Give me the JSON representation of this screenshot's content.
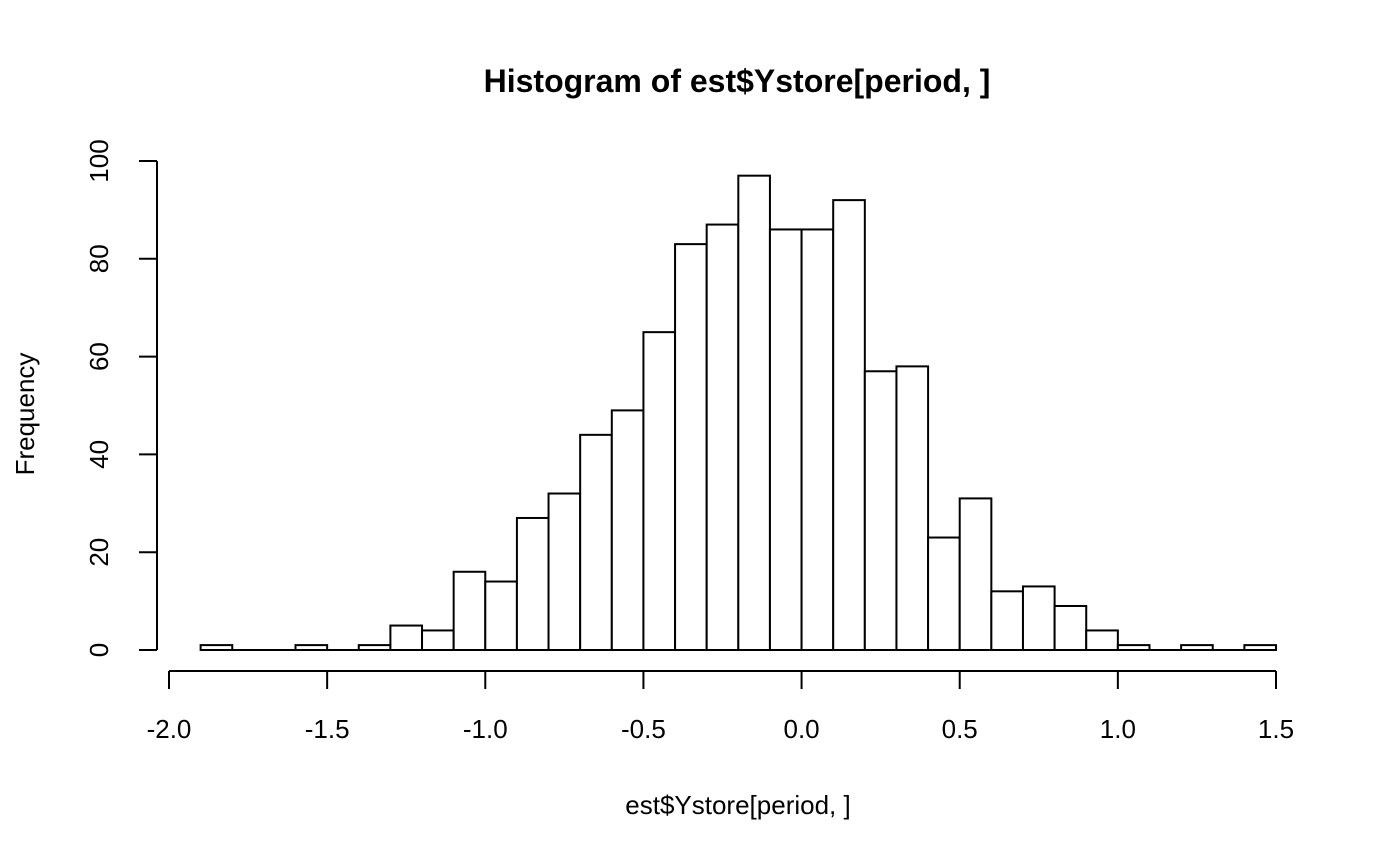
{
  "chart_data": {
    "type": "bar",
    "title": "Histogram of est$Ystore[period, ]",
    "xlabel": "est$Ystore[period, ]",
    "ylabel": "Frequency",
    "bin_width": 0.1,
    "bins": [
      {
        "x0": -1.9,
        "x1": -1.8,
        "count": 1
      },
      {
        "x0": -1.8,
        "x1": -1.7,
        "count": 0
      },
      {
        "x0": -1.7,
        "x1": -1.6,
        "count": 0
      },
      {
        "x0": -1.6,
        "x1": -1.5,
        "count": 1
      },
      {
        "x0": -1.5,
        "x1": -1.4,
        "count": 0
      },
      {
        "x0": -1.4,
        "x1": -1.3,
        "count": 1
      },
      {
        "x0": -1.3,
        "x1": -1.2,
        "count": 5
      },
      {
        "x0": -1.2,
        "x1": -1.1,
        "count": 4
      },
      {
        "x0": -1.1,
        "x1": -1.0,
        "count": 16
      },
      {
        "x0": -1.0,
        "x1": -0.9,
        "count": 14
      },
      {
        "x0": -0.9,
        "x1": -0.8,
        "count": 27
      },
      {
        "x0": -0.8,
        "x1": -0.7,
        "count": 32
      },
      {
        "x0": -0.7,
        "x1": -0.6,
        "count": 44
      },
      {
        "x0": -0.6,
        "x1": -0.5,
        "count": 49
      },
      {
        "x0": -0.5,
        "x1": -0.4,
        "count": 65
      },
      {
        "x0": -0.4,
        "x1": -0.3,
        "count": 83
      },
      {
        "x0": -0.3,
        "x1": -0.2,
        "count": 87
      },
      {
        "x0": -0.2,
        "x1": -0.1,
        "count": 97
      },
      {
        "x0": -0.1,
        "x1": 0.0,
        "count": 86
      },
      {
        "x0": 0.0,
        "x1": 0.1,
        "count": 86
      },
      {
        "x0": 0.1,
        "x1": 0.2,
        "count": 92
      },
      {
        "x0": 0.2,
        "x1": 0.3,
        "count": 57
      },
      {
        "x0": 0.3,
        "x1": 0.4,
        "count": 58
      },
      {
        "x0": 0.4,
        "x1": 0.5,
        "count": 23
      },
      {
        "x0": 0.5,
        "x1": 0.6,
        "count": 31
      },
      {
        "x0": 0.6,
        "x1": 0.7,
        "count": 12
      },
      {
        "x0": 0.7,
        "x1": 0.8,
        "count": 13
      },
      {
        "x0": 0.8,
        "x1": 0.9,
        "count": 9
      },
      {
        "x0": 0.9,
        "x1": 1.0,
        "count": 4
      },
      {
        "x0": 1.0,
        "x1": 1.1,
        "count": 1
      },
      {
        "x0": 1.1,
        "x1": 1.2,
        "count": 0
      },
      {
        "x0": 1.2,
        "x1": 1.3,
        "count": 1
      },
      {
        "x0": 1.3,
        "x1": 1.4,
        "count": 0
      },
      {
        "x0": 1.4,
        "x1": 1.5,
        "count": 1
      }
    ],
    "xlim": [
      -2.0,
      1.5
    ],
    "ylim": [
      0,
      100
    ],
    "x_ticks": [
      -2.0,
      -1.5,
      -1.0,
      -0.5,
      0.0,
      0.5,
      1.0,
      1.5
    ],
    "x_tick_labels": [
      "-2.0",
      "-1.5",
      "-1.0",
      "-0.5",
      "0.0",
      "0.5",
      "1.0",
      "1.5"
    ],
    "y_ticks": [
      0,
      20,
      40,
      60,
      80,
      100
    ],
    "y_tick_labels": [
      "0",
      "20",
      "40",
      "60",
      "80",
      "100"
    ],
    "grid": false,
    "legend": "none",
    "bar_fill": "#ffffff",
    "bar_stroke": "#000000"
  }
}
